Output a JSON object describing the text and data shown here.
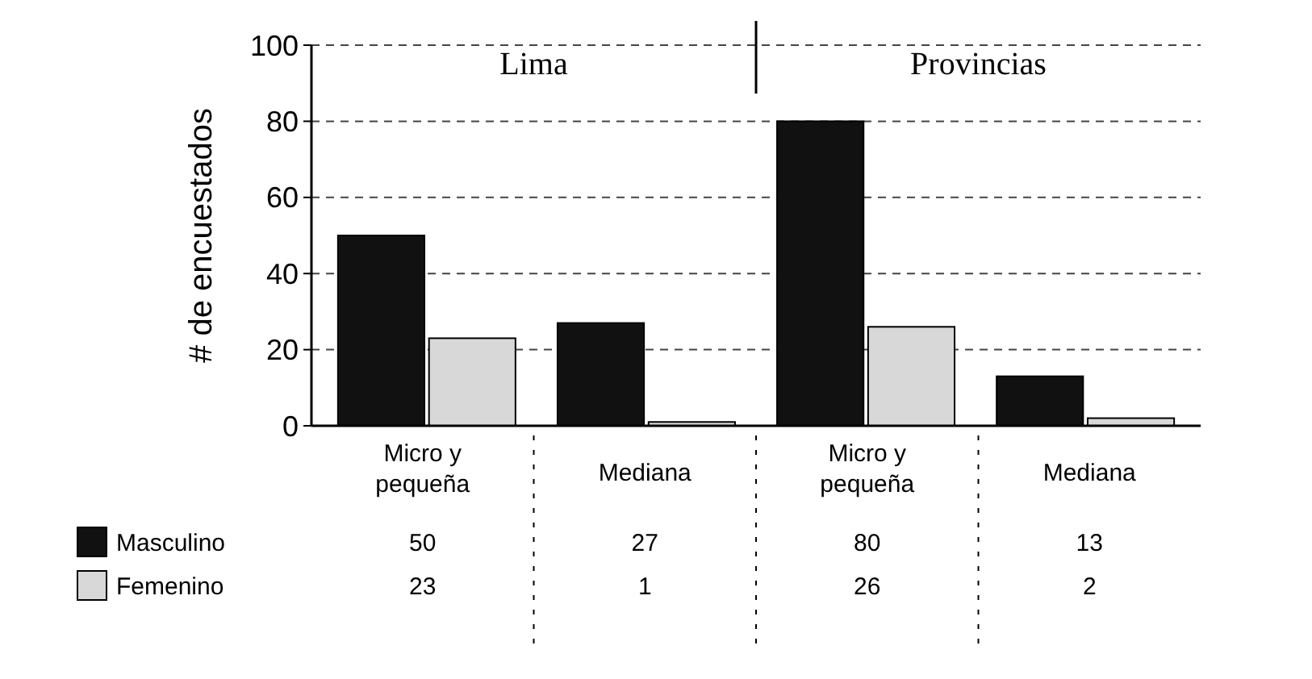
{
  "chart_data": {
    "type": "bar",
    "ylabel": "# de encuestados",
    "categories": [
      "Micro y pequeña",
      "Mediana",
      "Micro y pequeña",
      "Mediana"
    ],
    "series": [
      {
        "name": "Masculino",
        "color": "#111111",
        "values": [
          50,
          27,
          80,
          13
        ]
      },
      {
        "name": "Femenino",
        "color": "#d8d8d8",
        "values": [
          23,
          1,
          26,
          2
        ]
      }
    ],
    "ylim": [
      0,
      100
    ],
    "yticks": [
      0,
      20,
      40,
      60,
      80,
      100
    ],
    "grid": "y",
    "legend": "bottom left",
    "data_labels": true,
    "annotations": [
      "Lima",
      "Provincias"
    ]
  }
}
